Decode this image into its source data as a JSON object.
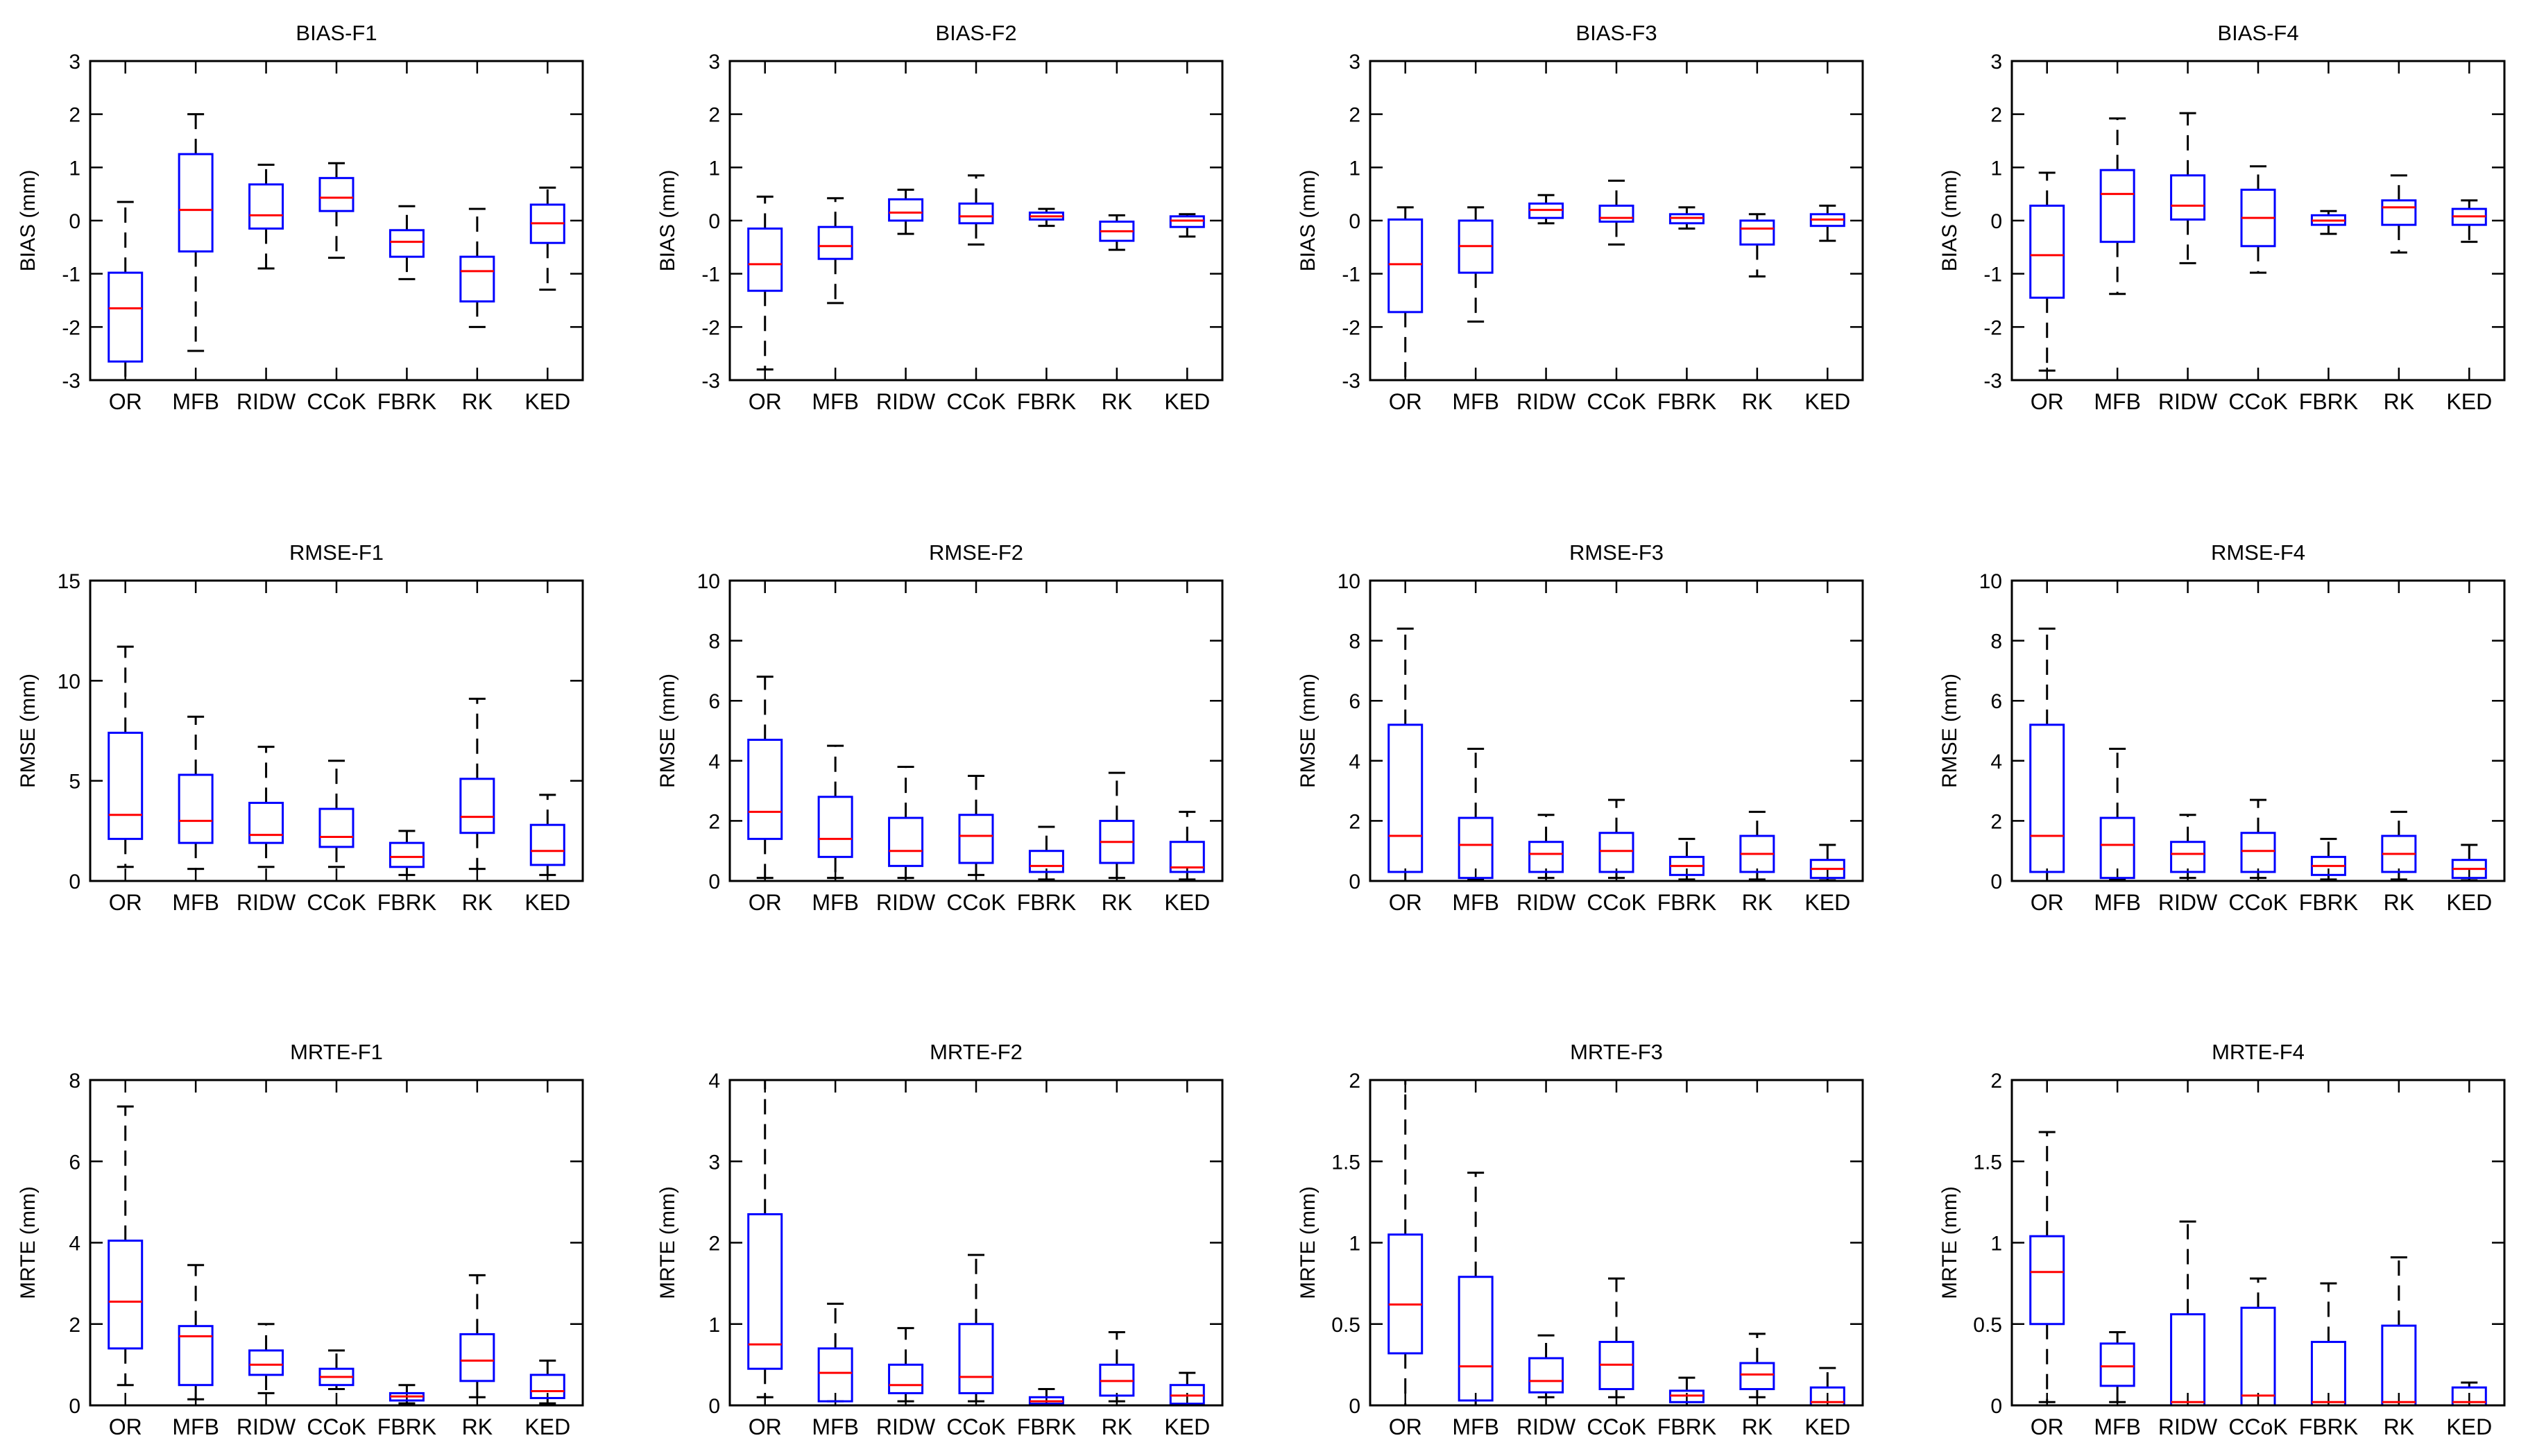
{
  "colors": {
    "box": "#0000ff",
    "median": "#ff0000",
    "whisker": "#000000",
    "axes": "#000000",
    "background": "#ffffff"
  },
  "chart_data": [
    {
      "type": "boxplot",
      "title": "BIAS-F1",
      "ylabel": "BIAS (mm)",
      "ylim": [
        -3,
        3
      ],
      "yticks": [
        "-3",
        "-2",
        "-1",
        "0",
        "1",
        "2",
        "3"
      ],
      "categories": [
        "OR",
        "MFB",
        "RIDW",
        "CCoK",
        "FBRK",
        "RK",
        "KED"
      ],
      "boxes": [
        {
          "lo": -3.0,
          "q1": -2.65,
          "med": -1.65,
          "q3": -0.98,
          "hi": 0.35
        },
        {
          "lo": -2.45,
          "q1": -0.58,
          "med": 0.2,
          "q3": 1.25,
          "hi": 2.0
        },
        {
          "lo": -0.9,
          "q1": -0.15,
          "med": 0.1,
          "q3": 0.68,
          "hi": 1.05
        },
        {
          "lo": -0.7,
          "q1": 0.18,
          "med": 0.43,
          "q3": 0.8,
          "hi": 1.08
        },
        {
          "lo": -1.1,
          "q1": -0.68,
          "med": -0.4,
          "q3": -0.18,
          "hi": 0.27
        },
        {
          "lo": -2.0,
          "q1": -1.52,
          "med": -0.95,
          "q3": -0.68,
          "hi": 0.22
        },
        {
          "lo": -1.3,
          "q1": -0.42,
          "med": -0.05,
          "q3": 0.3,
          "hi": 0.62
        }
      ]
    },
    {
      "type": "boxplot",
      "title": "BIAS-F2",
      "ylabel": "BIAS (mm)",
      "ylim": [
        -3,
        3
      ],
      "yticks": [
        "-3",
        "-2",
        "-1",
        "0",
        "1",
        "2",
        "3"
      ],
      "categories": [
        "OR",
        "MFB",
        "RIDW",
        "CCoK",
        "FBRK",
        "RK",
        "KED"
      ],
      "boxes": [
        {
          "lo": -2.8,
          "q1": -1.32,
          "med": -0.82,
          "q3": -0.15,
          "hi": 0.45
        },
        {
          "lo": -1.55,
          "q1": -0.72,
          "med": -0.48,
          "q3": -0.12,
          "hi": 0.42
        },
        {
          "lo": -0.25,
          "q1": 0.0,
          "med": 0.15,
          "q3": 0.4,
          "hi": 0.58
        },
        {
          "lo": -0.45,
          "q1": -0.05,
          "med": 0.08,
          "q3": 0.32,
          "hi": 0.85
        },
        {
          "lo": -0.1,
          "q1": 0.02,
          "med": 0.08,
          "q3": 0.15,
          "hi": 0.22
        },
        {
          "lo": -0.55,
          "q1": -0.38,
          "med": -0.2,
          "q3": -0.02,
          "hi": 0.1
        },
        {
          "lo": -0.3,
          "q1": -0.12,
          "med": 0.0,
          "q3": 0.08,
          "hi": 0.12
        }
      ]
    },
    {
      "type": "boxplot",
      "title": "BIAS-F3",
      "ylabel": "BIAS (mm)",
      "ylim": [
        -3,
        3
      ],
      "yticks": [
        "-3",
        "-2",
        "-1",
        "0",
        "1",
        "2",
        "3"
      ],
      "categories": [
        "OR",
        "MFB",
        "RIDW",
        "CCoK",
        "FBRK",
        "RK",
        "KED"
      ],
      "boxes": [
        {
          "lo": -3.0,
          "q1": -1.72,
          "med": -0.82,
          "q3": 0.02,
          "hi": 0.25
        },
        {
          "lo": -1.9,
          "q1": -0.98,
          "med": -0.48,
          "q3": 0.0,
          "hi": 0.25
        },
        {
          "lo": -0.05,
          "q1": 0.05,
          "med": 0.2,
          "q3": 0.32,
          "hi": 0.48
        },
        {
          "lo": -0.45,
          "q1": -0.02,
          "med": 0.05,
          "q3": 0.28,
          "hi": 0.75
        },
        {
          "lo": -0.15,
          "q1": -0.05,
          "med": 0.05,
          "q3": 0.12,
          "hi": 0.25
        },
        {
          "lo": -1.05,
          "q1": -0.45,
          "med": -0.15,
          "q3": 0.0,
          "hi": 0.12
        },
        {
          "lo": -0.38,
          "q1": -0.1,
          "med": 0.02,
          "q3": 0.12,
          "hi": 0.28
        }
      ]
    },
    {
      "type": "boxplot",
      "title": "BIAS-F4",
      "ylabel": "BIAS (mm)",
      "ylim": [
        -3,
        3
      ],
      "yticks": [
        "-3",
        "-2",
        "-1",
        "0",
        "1",
        "2",
        "3"
      ],
      "categories": [
        "OR",
        "MFB",
        "RIDW",
        "CCoK",
        "FBRK",
        "RK",
        "KED"
      ],
      "boxes": [
        {
          "lo": -2.82,
          "q1": -1.45,
          "med": -0.65,
          "q3": 0.28,
          "hi": 0.9
        },
        {
          "lo": -1.38,
          "q1": -0.4,
          "med": 0.5,
          "q3": 0.95,
          "hi": 1.92
        },
        {
          "lo": -0.8,
          "q1": 0.02,
          "med": 0.28,
          "q3": 0.85,
          "hi": 2.02
        },
        {
          "lo": -0.98,
          "q1": -0.48,
          "med": 0.05,
          "q3": 0.58,
          "hi": 1.02
        },
        {
          "lo": -0.25,
          "q1": -0.08,
          "med": 0.0,
          "q3": 0.1,
          "hi": 0.18
        },
        {
          "lo": -0.6,
          "q1": -0.08,
          "med": 0.25,
          "q3": 0.38,
          "hi": 0.85
        },
        {
          "lo": -0.4,
          "q1": -0.08,
          "med": 0.08,
          "q3": 0.22,
          "hi": 0.38
        }
      ]
    },
    {
      "type": "boxplot",
      "title": "RMSE-F1",
      "ylabel": "RMSE (mm)",
      "ylim": [
        0,
        15
      ],
      "yticks": [
        "0",
        "5",
        "10",
        "15"
      ],
      "categories": [
        "OR",
        "MFB",
        "RIDW",
        "CCoK",
        "FBRK",
        "RK",
        "KED"
      ],
      "boxes": [
        {
          "lo": 0.7,
          "q1": 2.1,
          "med": 3.3,
          "q3": 7.4,
          "hi": 11.7
        },
        {
          "lo": 0.6,
          "q1": 1.9,
          "med": 3.0,
          "q3": 5.3,
          "hi": 8.2
        },
        {
          "lo": 0.7,
          "q1": 1.9,
          "med": 2.3,
          "q3": 3.9,
          "hi": 6.7
        },
        {
          "lo": 0.7,
          "q1": 1.7,
          "med": 2.2,
          "q3": 3.6,
          "hi": 6.0
        },
        {
          "lo": 0.3,
          "q1": 0.7,
          "med": 1.2,
          "q3": 1.9,
          "hi": 2.5
        },
        {
          "lo": 0.6,
          "q1": 2.4,
          "med": 3.2,
          "q3": 5.1,
          "hi": 9.1
        },
        {
          "lo": 0.3,
          "q1": 0.8,
          "med": 1.5,
          "q3": 2.8,
          "hi": 4.3
        }
      ]
    },
    {
      "type": "boxplot",
      "title": "RMSE-F2",
      "ylabel": "RMSE (mm)",
      "ylim": [
        0,
        10
      ],
      "yticks": [
        "0",
        "2",
        "4",
        "6",
        "8",
        "10"
      ],
      "categories": [
        "OR",
        "MFB",
        "RIDW",
        "CCoK",
        "FBRK",
        "RK",
        "KED"
      ],
      "boxes": [
        {
          "lo": 0.1,
          "q1": 1.4,
          "med": 2.3,
          "q3": 4.7,
          "hi": 6.8
        },
        {
          "lo": 0.1,
          "q1": 0.8,
          "med": 1.4,
          "q3": 2.8,
          "hi": 4.5
        },
        {
          "lo": 0.1,
          "q1": 0.5,
          "med": 1.0,
          "q3": 2.1,
          "hi": 3.8
        },
        {
          "lo": 0.2,
          "q1": 0.6,
          "med": 1.5,
          "q3": 2.2,
          "hi": 3.5
        },
        {
          "lo": 0.05,
          "q1": 0.3,
          "med": 0.5,
          "q3": 1.0,
          "hi": 1.8
        },
        {
          "lo": 0.1,
          "q1": 0.6,
          "med": 1.3,
          "q3": 2.0,
          "hi": 3.6
        },
        {
          "lo": 0.05,
          "q1": 0.3,
          "med": 0.45,
          "q3": 1.3,
          "hi": 2.3
        }
      ]
    },
    {
      "type": "boxplot",
      "title": "RMSE-F3",
      "ylabel": "RMSE (mm)",
      "ylim": [
        0,
        10
      ],
      "yticks": [
        "0",
        "2",
        "4",
        "6",
        "8",
        "10"
      ],
      "categories": [
        "OR",
        "MFB",
        "RIDW",
        "CCoK",
        "FBRK",
        "RK",
        "KED"
      ],
      "boxes": [
        {
          "lo": 0.0,
          "q1": 0.3,
          "med": 1.5,
          "q3": 5.2,
          "hi": 8.4
        },
        {
          "lo": 0.05,
          "q1": 0.1,
          "med": 1.2,
          "q3": 2.1,
          "hi": 4.4
        },
        {
          "lo": 0.1,
          "q1": 0.3,
          "med": 0.9,
          "q3": 1.3,
          "hi": 2.2
        },
        {
          "lo": 0.1,
          "q1": 0.3,
          "med": 1.0,
          "q3": 1.6,
          "hi": 2.7
        },
        {
          "lo": 0.05,
          "q1": 0.2,
          "med": 0.5,
          "q3": 0.8,
          "hi": 1.4
        },
        {
          "lo": 0.05,
          "q1": 0.3,
          "med": 0.9,
          "q3": 1.5,
          "hi": 2.3
        },
        {
          "lo": 0.02,
          "q1": 0.1,
          "med": 0.4,
          "q3": 0.7,
          "hi": 1.2
        }
      ]
    },
    {
      "type": "boxplot",
      "title": "RMSE-F4",
      "ylabel": "RMSE (mm)",
      "ylim": [
        0,
        10
      ],
      "yticks": [
        "0",
        "2",
        "4",
        "6",
        "8",
        "10"
      ],
      "categories": [
        "OR",
        "MFB",
        "RIDW",
        "CCoK",
        "FBRK",
        "RK",
        "KED"
      ],
      "boxes": [
        {
          "lo": 0.0,
          "q1": 0.3,
          "med": 1.5,
          "q3": 5.2,
          "hi": 8.4
        },
        {
          "lo": 0.05,
          "q1": 0.1,
          "med": 1.2,
          "q3": 2.1,
          "hi": 4.4
        },
        {
          "lo": 0.1,
          "q1": 0.3,
          "med": 0.9,
          "q3": 1.3,
          "hi": 2.2
        },
        {
          "lo": 0.1,
          "q1": 0.3,
          "med": 1.0,
          "q3": 1.6,
          "hi": 2.7
        },
        {
          "lo": 0.05,
          "q1": 0.2,
          "med": 0.5,
          "q3": 0.8,
          "hi": 1.4
        },
        {
          "lo": 0.05,
          "q1": 0.3,
          "med": 0.9,
          "q3": 1.5,
          "hi": 2.3
        },
        {
          "lo": 0.02,
          "q1": 0.1,
          "med": 0.4,
          "q3": 0.7,
          "hi": 1.2
        }
      ]
    },
    {
      "type": "boxplot",
      "title": "MRTE-F1",
      "ylabel": "MRTE (mm)",
      "ylim": [
        0,
        8
      ],
      "yticks": [
        "0",
        "2",
        "4",
        "6",
        "8"
      ],
      "categories": [
        "OR",
        "MFB",
        "RIDW",
        "CCoK",
        "FBRK",
        "RK",
        "KED"
      ],
      "boxes": [
        {
          "lo": 0.5,
          "q1": 1.4,
          "med": 2.55,
          "q3": 4.05,
          "hi": 7.35
        },
        {
          "lo": 0.15,
          "q1": 0.5,
          "med": 1.7,
          "q3": 1.95,
          "hi": 3.45
        },
        {
          "lo": 0.3,
          "q1": 0.75,
          "med": 1.0,
          "q3": 1.35,
          "hi": 2.0
        },
        {
          "lo": 0.4,
          "q1": 0.5,
          "med": 0.7,
          "q3": 0.9,
          "hi": 1.35
        },
        {
          "lo": 0.05,
          "q1": 0.12,
          "med": 0.22,
          "q3": 0.3,
          "hi": 0.5
        },
        {
          "lo": 0.2,
          "q1": 0.6,
          "med": 1.1,
          "q3": 1.75,
          "hi": 3.2
        },
        {
          "lo": 0.05,
          "q1": 0.18,
          "med": 0.35,
          "q3": 0.75,
          "hi": 1.1
        }
      ]
    },
    {
      "type": "boxplot",
      "title": "MRTE-F2",
      "ylabel": "MRTE (mm)",
      "ylim": [
        0,
        4
      ],
      "yticks": [
        "0",
        "1",
        "2",
        "3",
        "4"
      ],
      "categories": [
        "OR",
        "MFB",
        "RIDW",
        "CCoK",
        "FBRK",
        "RK",
        "KED"
      ],
      "boxes": [
        {
          "lo": 0.1,
          "q1": 0.45,
          "med": 0.75,
          "q3": 2.35,
          "hi": 4.0
        },
        {
          "lo": 0.05,
          "q1": 0.05,
          "med": 0.4,
          "q3": 0.7,
          "hi": 1.25
        },
        {
          "lo": 0.05,
          "q1": 0.15,
          "med": 0.25,
          "q3": 0.5,
          "hi": 0.95
        },
        {
          "lo": 0.05,
          "q1": 0.15,
          "med": 0.35,
          "q3": 1.0,
          "hi": 1.85
        },
        {
          "lo": 0.0,
          "q1": 0.02,
          "med": 0.05,
          "q3": 0.1,
          "hi": 0.2
        },
        {
          "lo": 0.05,
          "q1": 0.12,
          "med": 0.3,
          "q3": 0.5,
          "hi": 0.9
        },
        {
          "lo": 0.0,
          "q1": 0.02,
          "med": 0.12,
          "q3": 0.25,
          "hi": 0.4
        }
      ]
    },
    {
      "type": "boxplot",
      "title": "MRTE-F3",
      "ylabel": "MRTE (mm)",
      "ylim": [
        0,
        2
      ],
      "yticks": [
        "0",
        "0.5",
        "1",
        "1.5",
        "2"
      ],
      "categories": [
        "OR",
        "MFB",
        "RIDW",
        "CCoK",
        "FBRK",
        "RK",
        "KED"
      ],
      "boxes": [
        {
          "lo": 0.0,
          "q1": 0.32,
          "med": 0.62,
          "q3": 1.05,
          "hi": 2.0
        },
        {
          "lo": 0.0,
          "q1": 0.03,
          "med": 0.24,
          "q3": 0.79,
          "hi": 1.43
        },
        {
          "lo": 0.05,
          "q1": 0.08,
          "med": 0.15,
          "q3": 0.29,
          "hi": 0.43
        },
        {
          "lo": 0.05,
          "q1": 0.1,
          "med": 0.25,
          "q3": 0.39,
          "hi": 0.78
        },
        {
          "lo": 0.0,
          "q1": 0.02,
          "med": 0.06,
          "q3": 0.09,
          "hi": 0.17
        },
        {
          "lo": 0.05,
          "q1": 0.1,
          "med": 0.19,
          "q3": 0.26,
          "hi": 0.44
        },
        {
          "lo": 0.0,
          "q1": 0.0,
          "med": 0.02,
          "q3": 0.11,
          "hi": 0.23
        }
      ]
    },
    {
      "type": "boxplot",
      "title": "MRTE-F4",
      "ylabel": "MRTE (mm)",
      "ylim": [
        0,
        2
      ],
      "yticks": [
        "0",
        "0.5",
        "1",
        "1.5",
        "2"
      ],
      "categories": [
        "OR",
        "MFB",
        "RIDW",
        "CCoK",
        "FBRK",
        "RK",
        "KED"
      ],
      "boxes": [
        {
          "lo": 0.02,
          "q1": 0.5,
          "med": 0.82,
          "q3": 1.04,
          "hi": 1.68
        },
        {
          "lo": 0.02,
          "q1": 0.12,
          "med": 0.24,
          "q3": 0.38,
          "hi": 0.45
        },
        {
          "lo": 0.0,
          "q1": 0.0,
          "med": 0.02,
          "q3": 0.56,
          "hi": 1.13
        },
        {
          "lo": 0.0,
          "q1": 0.0,
          "med": 0.06,
          "q3": 0.6,
          "hi": 0.78
        },
        {
          "lo": 0.0,
          "q1": 0.0,
          "med": 0.02,
          "q3": 0.39,
          "hi": 0.75
        },
        {
          "lo": 0.0,
          "q1": 0.0,
          "med": 0.02,
          "q3": 0.49,
          "hi": 0.91
        },
        {
          "lo": 0.0,
          "q1": 0.0,
          "med": 0.02,
          "q3": 0.11,
          "hi": 0.14
        }
      ]
    }
  ]
}
